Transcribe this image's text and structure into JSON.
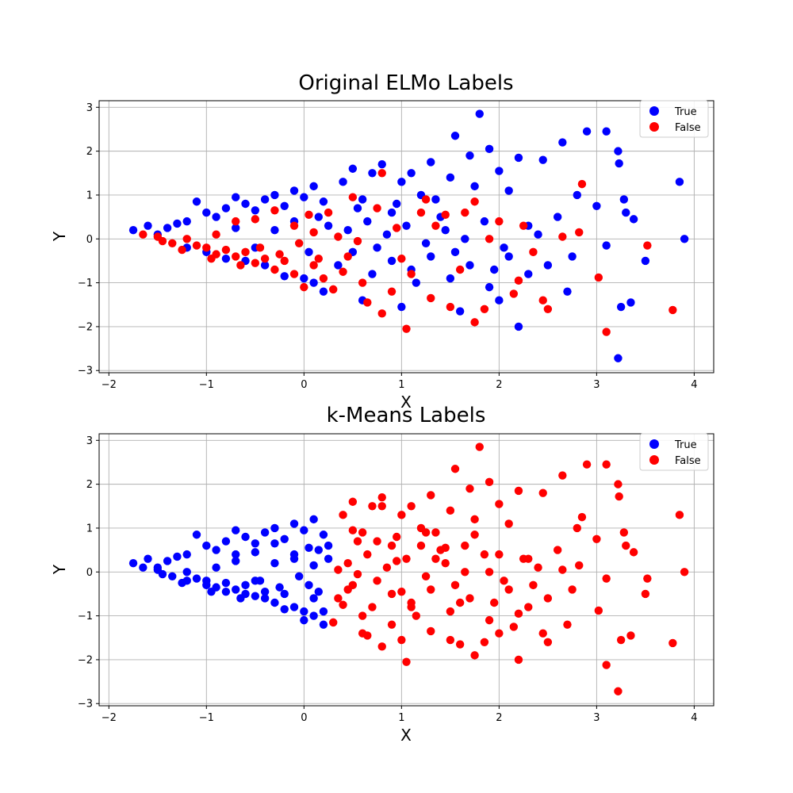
{
  "colors": {
    "true": "#0000ff",
    "false": "#ff0000"
  },
  "chart_data": [
    {
      "type": "scatter",
      "title": "Original ELMo Labels",
      "xlabel": "X",
      "ylabel": "Y",
      "xlim": [
        -2.1,
        4.2
      ],
      "ylim": [
        -3.05,
        3.15
      ],
      "xticks": [
        -2,
        -1,
        0,
        1,
        2,
        3,
        4
      ],
      "yticks": [
        -3,
        -2,
        -1,
        0,
        1,
        2,
        3
      ],
      "grid": true,
      "legend_position": "top-right",
      "labeling": "original",
      "legend": [
        {
          "label": "True",
          "color": "#0000ff"
        },
        {
          "label": "False",
          "color": "#ff0000"
        }
      ]
    },
    {
      "type": "scatter",
      "title": "k-Means Labels",
      "xlabel": "X",
      "ylabel": "Y",
      "xlim": [
        -2.1,
        4.2
      ],
      "ylim": [
        -3.05,
        3.15
      ],
      "xticks": [
        -2,
        -1,
        0,
        1,
        2,
        3,
        4
      ],
      "yticks": [
        -3,
        -2,
        -1,
        0,
        1,
        2,
        3
      ],
      "grid": true,
      "legend_position": "top-right",
      "labeling": "kmeans",
      "legend": [
        {
          "label": "True",
          "color": "#0000ff"
        },
        {
          "label": "False",
          "color": "#ff0000"
        }
      ]
    }
  ],
  "points": [
    [
      -1.75,
      0.2,
      "True"
    ],
    [
      -1.6,
      0.3,
      "True"
    ],
    [
      -1.5,
      0.1,
      "True"
    ],
    [
      -1.4,
      0.25,
      "True"
    ],
    [
      -1.3,
      0.35,
      "True"
    ],
    [
      -1.2,
      0.4,
      "True"
    ],
    [
      -1.1,
      0.85,
      "True"
    ],
    [
      -1.0,
      0.6,
      "True"
    ],
    [
      -0.9,
      0.5,
      "True"
    ],
    [
      -0.8,
      0.7,
      "True"
    ],
    [
      -0.7,
      0.95,
      "True"
    ],
    [
      -0.6,
      0.8,
      "True"
    ],
    [
      -0.5,
      0.65,
      "True"
    ],
    [
      -0.4,
      0.9,
      "True"
    ],
    [
      -0.3,
      1.0,
      "True"
    ],
    [
      -0.2,
      0.75,
      "True"
    ],
    [
      -0.1,
      1.1,
      "True"
    ],
    [
      0.0,
      0.95,
      "True"
    ],
    [
      0.1,
      1.2,
      "True"
    ],
    [
      0.2,
      0.85,
      "True"
    ],
    [
      -1.2,
      -0.2,
      "True"
    ],
    [
      -1.0,
      -0.3,
      "True"
    ],
    [
      -0.8,
      -0.45,
      "True"
    ],
    [
      -0.6,
      -0.5,
      "True"
    ],
    [
      -0.4,
      -0.6,
      "True"
    ],
    [
      -0.2,
      -0.85,
      "True"
    ],
    [
      0.0,
      -0.9,
      "True"
    ],
    [
      0.1,
      -1.0,
      "True"
    ],
    [
      0.2,
      -1.2,
      "True"
    ],
    [
      -0.5,
      -0.2,
      "True"
    ],
    [
      -0.3,
      0.2,
      "True"
    ],
    [
      -0.1,
      0.4,
      "True"
    ],
    [
      0.05,
      -0.3,
      "True"
    ],
    [
      0.15,
      0.5,
      "True"
    ],
    [
      0.25,
      0.3,
      "True"
    ],
    [
      -0.7,
      0.25,
      "True"
    ],
    [
      0.4,
      1.3,
      "True"
    ],
    [
      0.5,
      1.6,
      "True"
    ],
    [
      0.6,
      0.9,
      "True"
    ],
    [
      0.7,
      1.5,
      "True"
    ],
    [
      0.8,
      1.7,
      "True"
    ],
    [
      0.9,
      0.6,
      "True"
    ],
    [
      1.0,
      1.3,
      "True"
    ],
    [
      1.1,
      1.5,
      "True"
    ],
    [
      1.2,
      1.0,
      "True"
    ],
    [
      1.3,
      1.75,
      "True"
    ],
    [
      1.4,
      0.5,
      "True"
    ],
    [
      1.5,
      1.4,
      "True"
    ],
    [
      1.55,
      2.35,
      "True"
    ],
    [
      1.7,
      1.9,
      "True"
    ],
    [
      1.8,
      2.85,
      "True"
    ],
    [
      1.9,
      2.05,
      "True"
    ],
    [
      2.0,
      1.55,
      "True"
    ],
    [
      2.1,
      1.1,
      "True"
    ],
    [
      2.2,
      1.85,
      "True"
    ],
    [
      2.3,
      0.3,
      "True"
    ],
    [
      2.45,
      1.8,
      "True"
    ],
    [
      2.6,
      0.5,
      "True"
    ],
    [
      2.65,
      2.2,
      "True"
    ],
    [
      2.8,
      1.0,
      "True"
    ],
    [
      2.9,
      2.45,
      "True"
    ],
    [
      3.0,
      0.75,
      "True"
    ],
    [
      3.1,
      2.45,
      "True"
    ],
    [
      3.22,
      2.0,
      "True"
    ],
    [
      3.23,
      1.72,
      "True"
    ],
    [
      3.28,
      0.9,
      "True"
    ],
    [
      3.3,
      0.6,
      "True"
    ],
    [
      3.38,
      0.45,
      "True"
    ],
    [
      3.1,
      -0.15,
      "True"
    ],
    [
      3.5,
      -0.5,
      "True"
    ],
    [
      3.85,
      1.3,
      "True"
    ],
    [
      3.9,
      0.0,
      "True"
    ],
    [
      3.25,
      -1.55,
      "True"
    ],
    [
      3.35,
      -1.45,
      "True"
    ],
    [
      3.22,
      -2.72,
      "True"
    ],
    [
      2.2,
      -2.0,
      "True"
    ],
    [
      2.0,
      -1.4,
      "True"
    ],
    [
      1.6,
      -1.65,
      "True"
    ],
    [
      1.0,
      -1.55,
      "True"
    ],
    [
      0.6,
      -1.4,
      "True"
    ],
    [
      0.5,
      -0.3,
      "True"
    ],
    [
      0.7,
      -0.8,
      "True"
    ],
    [
      0.9,
      -0.5,
      "True"
    ],
    [
      1.1,
      -0.7,
      "True"
    ],
    [
      1.3,
      -0.4,
      "True"
    ],
    [
      1.5,
      -0.9,
      "True"
    ],
    [
      1.7,
      -0.6,
      "True"
    ],
    [
      1.9,
      -1.1,
      "True"
    ],
    [
      2.1,
      -0.4,
      "True"
    ],
    [
      2.3,
      -0.8,
      "True"
    ],
    [
      2.5,
      -0.6,
      "True"
    ],
    [
      2.7,
      -1.2,
      "True"
    ],
    [
      0.45,
      0.2,
      "True"
    ],
    [
      0.65,
      0.4,
      "True"
    ],
    [
      0.85,
      0.1,
      "True"
    ],
    [
      1.05,
      0.3,
      "True"
    ],
    [
      1.25,
      -0.1,
      "True"
    ],
    [
      1.45,
      0.2,
      "True"
    ],
    [
      1.65,
      0.0,
      "True"
    ],
    [
      1.85,
      0.4,
      "True"
    ],
    [
      2.05,
      -0.2,
      "True"
    ],
    [
      2.4,
      0.1,
      "True"
    ],
    [
      2.75,
      -0.4,
      "True"
    ],
    [
      0.35,
      -0.6,
      "True"
    ],
    [
      0.55,
      0.7,
      "True"
    ],
    [
      0.75,
      -0.2,
      "True"
    ],
    [
      0.95,
      0.8,
      "True"
    ],
    [
      1.15,
      -1.0,
      "True"
    ],
    [
      1.35,
      0.9,
      "True"
    ],
    [
      1.55,
      -0.3,
      "True"
    ],
    [
      1.75,
      1.2,
      "True"
    ],
    [
      1.95,
      -0.7,
      "True"
    ],
    [
      -1.65,
      0.1,
      "False"
    ],
    [
      -1.5,
      0.05,
      "False"
    ],
    [
      -1.35,
      -0.1,
      "False"
    ],
    [
      -1.2,
      0.0,
      "False"
    ],
    [
      -1.1,
      -0.15,
      "False"
    ],
    [
      -1.0,
      -0.2,
      "False"
    ],
    [
      -0.9,
      -0.35,
      "False"
    ],
    [
      -0.8,
      -0.25,
      "False"
    ],
    [
      -0.7,
      -0.4,
      "False"
    ],
    [
      -0.6,
      -0.3,
      "False"
    ],
    [
      -0.5,
      -0.55,
      "False"
    ],
    [
      -0.4,
      -0.45,
      "False"
    ],
    [
      -0.3,
      -0.7,
      "False"
    ],
    [
      -0.2,
      -0.5,
      "False"
    ],
    [
      -0.1,
      -0.8,
      "False"
    ],
    [
      0.0,
      -1.1,
      "False"
    ],
    [
      0.1,
      -0.6,
      "False"
    ],
    [
      0.2,
      -0.9,
      "False"
    ],
    [
      0.3,
      -1.15,
      "False"
    ],
    [
      0.4,
      -0.75,
      "False"
    ],
    [
      -0.9,
      0.1,
      "False"
    ],
    [
      -0.7,
      0.4,
      "False"
    ],
    [
      -0.5,
      0.45,
      "False"
    ],
    [
      -0.3,
      0.65,
      "False"
    ],
    [
      -0.1,
      0.3,
      "False"
    ],
    [
      0.05,
      0.55,
      "False"
    ],
    [
      0.25,
      0.6,
      "False"
    ],
    [
      0.1,
      0.15,
      "False"
    ],
    [
      0.5,
      0.95,
      "False"
    ],
    [
      0.6,
      -1.0,
      "False"
    ],
    [
      0.65,
      -1.45,
      "False"
    ],
    [
      0.8,
      1.5,
      "False"
    ],
    [
      0.8,
      -1.7,
      "False"
    ],
    [
      0.9,
      -1.2,
      "False"
    ],
    [
      1.05,
      -2.05,
      "False"
    ],
    [
      1.1,
      -0.8,
      "False"
    ],
    [
      1.2,
      0.6,
      "False"
    ],
    [
      1.3,
      -1.35,
      "False"
    ],
    [
      1.45,
      0.55,
      "False"
    ],
    [
      1.65,
      0.6,
      "False"
    ],
    [
      1.75,
      -1.9,
      "False"
    ],
    [
      1.75,
      0.85,
      "False"
    ],
    [
      1.85,
      -1.6,
      "False"
    ],
    [
      2.0,
      0.4,
      "False"
    ],
    [
      2.15,
      -1.25,
      "False"
    ],
    [
      2.2,
      -0.95,
      "False"
    ],
    [
      2.35,
      -0.3,
      "False"
    ],
    [
      2.45,
      -1.4,
      "False"
    ],
    [
      2.5,
      -1.6,
      "False"
    ],
    [
      2.65,
      0.05,
      "False"
    ],
    [
      2.85,
      1.25,
      "False"
    ],
    [
      2.82,
      0.15,
      "False"
    ],
    [
      3.02,
      -0.88,
      "False"
    ],
    [
      3.1,
      -2.12,
      "False"
    ],
    [
      3.52,
      -0.15,
      "False"
    ],
    [
      3.78,
      -1.62,
      "False"
    ],
    [
      1.6,
      -0.7,
      "False"
    ],
    [
      1.35,
      0.3,
      "False"
    ],
    [
      0.95,
      0.25,
      "False"
    ],
    [
      0.55,
      -0.05,
      "False"
    ],
    [
      -1.45,
      -0.05,
      "False"
    ],
    [
      -1.25,
      -0.25,
      "False"
    ],
    [
      -0.95,
      -0.45,
      "False"
    ],
    [
      -0.65,
      -0.6,
      "False"
    ],
    [
      -0.45,
      -0.2,
      "False"
    ],
    [
      -0.25,
      -0.35,
      "False"
    ],
    [
      -0.05,
      -0.1,
      "False"
    ],
    [
      0.15,
      -0.45,
      "False"
    ],
    [
      0.35,
      0.05,
      "False"
    ],
    [
      0.45,
      -0.4,
      "False"
    ],
    [
      0.75,
      0.7,
      "False"
    ],
    [
      1.0,
      -0.45,
      "False"
    ],
    [
      1.25,
      0.9,
      "False"
    ],
    [
      1.5,
      -1.55,
      "False"
    ],
    [
      1.9,
      0.0,
      "False"
    ],
    [
      2.25,
      0.3,
      "False"
    ]
  ],
  "kmeans_boundary_x": 0.28
}
